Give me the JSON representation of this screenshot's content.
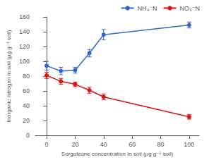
{
  "chart_data": {
    "type": "line",
    "xlabel": "Sorgoleone concentration in soil (μg g⁻¹ soil)",
    "ylabel": "Inorganic nitrogen in soil (μg g⁻¹ soil)",
    "x": [
      0,
      10,
      20,
      30,
      40,
      100
    ],
    "series": [
      {
        "name": "NH₄⁻N",
        "color": "#3366cc",
        "marker": "circle",
        "values": [
          94,
          87,
          88,
          111,
          136,
          149
        ],
        "errors": [
          6,
          5,
          4,
          5,
          7,
          4
        ]
      },
      {
        "name": "NO₃⁻N",
        "color": "#dd1111",
        "marker": "circle",
        "values": [
          81,
          73,
          69,
          61,
          52,
          25
        ],
        "errors": [
          4,
          4,
          3,
          4,
          4,
          3
        ]
      }
    ],
    "xlim": [
      -8,
      107
    ],
    "ylim": [
      0,
      160
    ],
    "xticks": [
      0,
      20,
      40,
      60,
      80,
      100
    ],
    "yticks": [
      0,
      20,
      40,
      60,
      80,
      100,
      120,
      140,
      160
    ],
    "grid": false,
    "legend": "upper right"
  }
}
